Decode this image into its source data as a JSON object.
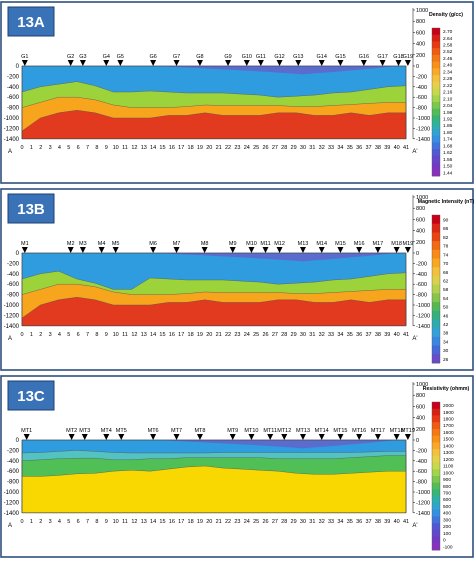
{
  "x_axis": {
    "start_label": "A",
    "end_label": "A'",
    "ticks": [
      "0",
      "1",
      "2",
      "3",
      "4",
      "5",
      "6",
      "7",
      "8",
      "9",
      "10",
      "11",
      "12",
      "13",
      "14",
      "15",
      "16",
      "17",
      "18",
      "19",
      "20",
      "21",
      "22",
      "23",
      "24",
      "25",
      "26",
      "27",
      "28",
      "29",
      "30",
      "31",
      "32",
      "33",
      "34",
      "35",
      "36",
      "37",
      "38",
      "39",
      "40",
      "41"
    ]
  },
  "panels": [
    {
      "id": "13A",
      "label": "13A",
      "colorbar_title": "Density (g/cc)",
      "colorbar_values": [
        "2.70",
        "2.64",
        "2.58",
        "2.52",
        "2.46",
        "2.40",
        "2.34",
        "2.28",
        "2.22",
        "2.16",
        "2.10",
        "2.04",
        "1.98",
        "1.92",
        "1.86",
        "1.80",
        "1.74",
        "1.68",
        "1.62",
        "1.56",
        "1.50",
        "1.44"
      ],
      "y_ticks_left": [
        "0",
        "-200",
        "-400",
        "-600",
        "-800",
        "-1000",
        "-1200",
        "-1400"
      ],
      "y_ticks_right": [
        "1000",
        "800",
        "600",
        "400",
        "200",
        "0",
        "-200",
        "-400",
        "-600",
        "-800",
        "-1000",
        "-1200",
        "-1400"
      ],
      "stations": [
        "G1",
        "G2",
        "G3",
        "G4",
        "G5",
        "G6",
        "G7",
        "G8",
        "G9",
        "G10",
        "G11",
        "G12",
        "G13",
        "G14",
        "G15",
        "G16",
        "G17",
        "G18",
        "G19"
      ],
      "station_x": [
        0.3,
        5.2,
        6.5,
        9,
        10.5,
        14,
        16.5,
        19,
        22,
        24,
        25.5,
        27.5,
        29.5,
        32,
        34,
        36.5,
        38.5,
        40.2,
        41.2
      ]
    },
    {
      "id": "13B",
      "label": "13B",
      "colorbar_title": "Magnetic Intensity (nT)",
      "colorbar_values": [
        "90",
        "86",
        "82",
        "78",
        "74",
        "70",
        "66",
        "62",
        "58",
        "54",
        "50",
        "46",
        "42",
        "38",
        "34",
        "30",
        "26"
      ],
      "y_ticks_left": [
        "0",
        "-200",
        "-400",
        "-600",
        "-800",
        "-1000",
        "-1200",
        "-1400"
      ],
      "y_ticks_right": [
        "1000",
        "800",
        "600",
        "400",
        "200",
        "0",
        "-200",
        "-400",
        "-600",
        "-800",
        "-1000",
        "-1200",
        "-1400"
      ],
      "stations": [
        "M1",
        "M2",
        "M3",
        "M4",
        "M5",
        "M6",
        "M7",
        "M8",
        "M9",
        "M10",
        "M11",
        "M12",
        "M13",
        "M14",
        "M15",
        "M16",
        "M17",
        "M18",
        "M19"
      ],
      "station_x": [
        0.3,
        5.2,
        6.5,
        8.5,
        10,
        14,
        16.5,
        19.5,
        22.5,
        24.5,
        26,
        27.5,
        30,
        32,
        34,
        36,
        38,
        40,
        41.2
      ]
    },
    {
      "id": "13C",
      "label": "13C",
      "colorbar_title": "Resistivity (ohmm)",
      "colorbar_values": [
        "2000",
        "1900",
        "1800",
        "1700",
        "1600",
        "1500",
        "1400",
        "1300",
        "1200",
        "1100",
        "1000",
        "900",
        "800",
        "700",
        "600",
        "500",
        "400",
        "300",
        "200",
        "100",
        "0",
        "-100"
      ],
      "y_ticks_left": [
        "0",
        "-200",
        "-400",
        "-600",
        "-800",
        "-1000",
        "-1200",
        "-1400"
      ],
      "y_ticks_right": [
        "1000",
        "800",
        "600",
        "400",
        "200",
        "0",
        "-200",
        "-400",
        "-600",
        "-800",
        "-1000",
        "-1200",
        "-1400"
      ],
      "stations": [
        "MT1",
        "MT2",
        "MT3",
        "MT4",
        "MT5",
        "MT6",
        "MT7",
        "MT8",
        "MT9",
        "MT10",
        "MT11",
        "MT12",
        "MT13",
        "MT14",
        "MT15",
        "MT16",
        "MT17",
        "MT18",
        "MT19"
      ],
      "station_x": [
        0.5,
        5.3,
        6.7,
        9,
        10.6,
        14,
        16.5,
        19,
        22.5,
        24.5,
        26.5,
        28,
        30,
        32,
        34,
        36,
        38,
        40,
        41.2
      ]
    }
  ]
}
